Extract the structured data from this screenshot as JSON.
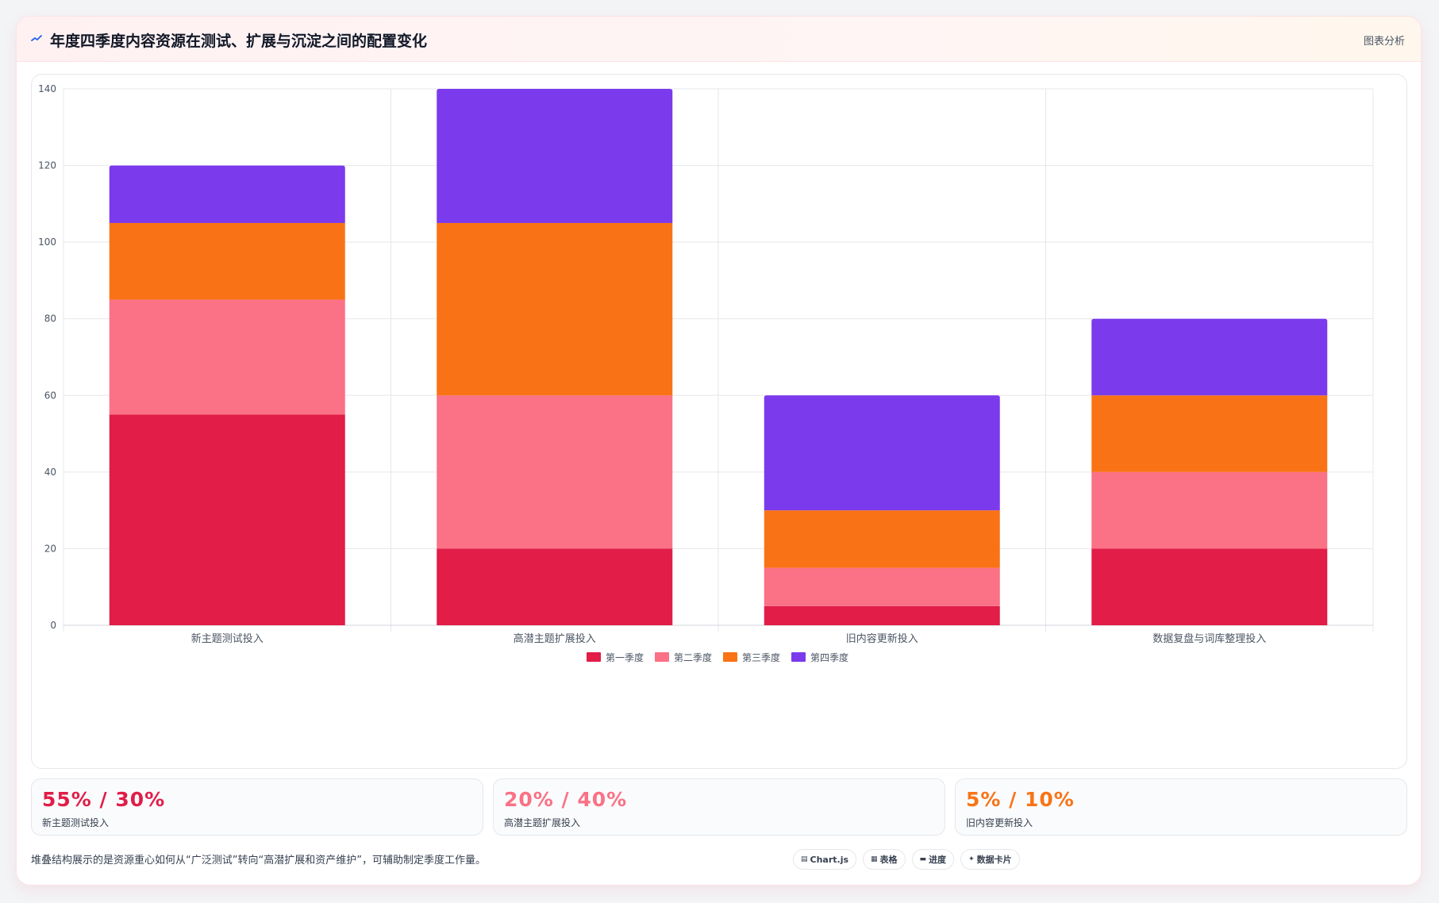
{
  "header": {
    "title": "年度四季度内容资源在测试、扩展与沉淀之间的配置变化",
    "action_label": "图表分析"
  },
  "chart_data": {
    "type": "bar",
    "stacked": true,
    "categories": [
      "新主题测试投入",
      "高潜主题扩展投入",
      "旧内容更新投入",
      "数据复盘与词库整理投入"
    ],
    "series": [
      {
        "name": "第一季度",
        "color": "#e11d48",
        "values": [
          55,
          20,
          5,
          20
        ]
      },
      {
        "name": "第二季度",
        "color": "#fb7185",
        "values": [
          30,
          40,
          10,
          20
        ]
      },
      {
        "name": "第三季度",
        "color": "#f97316",
        "values": [
          20,
          45,
          15,
          20
        ]
      },
      {
        "name": "第四季度",
        "color": "#7c3aed",
        "values": [
          15,
          35,
          30,
          20
        ]
      }
    ],
    "ylim": [
      0,
      140
    ],
    "yticks": [
      0,
      20,
      40,
      60,
      80,
      100,
      120,
      140
    ],
    "grid": true,
    "legend": "bottom"
  },
  "stats": [
    {
      "value": "55% / 30%",
      "label": "新主题测试投入",
      "color": "#e11d48"
    },
    {
      "value": "20% / 40%",
      "label": "高潜主题扩展投入",
      "color": "#fb7185"
    },
    {
      "value": "5% / 10%",
      "label": "旧内容更新投入",
      "color": "#f97316"
    }
  ],
  "footer": {
    "note": "堆叠结构展示的是资源重心如何从“广泛测试”转向“高潜扩展和资产维护”，可辅助制定季度工作量。",
    "chips": [
      {
        "icon": "▤",
        "label": "Chart.js",
        "icon_name": "chart-icon"
      },
      {
        "icon": "▦",
        "label": "表格",
        "icon_name": "table-icon"
      },
      {
        "icon": "▬",
        "label": "进度",
        "icon_name": "progress-icon"
      },
      {
        "icon": "✦",
        "label": "数据卡片",
        "icon_name": "sparkle-icon"
      }
    ]
  }
}
